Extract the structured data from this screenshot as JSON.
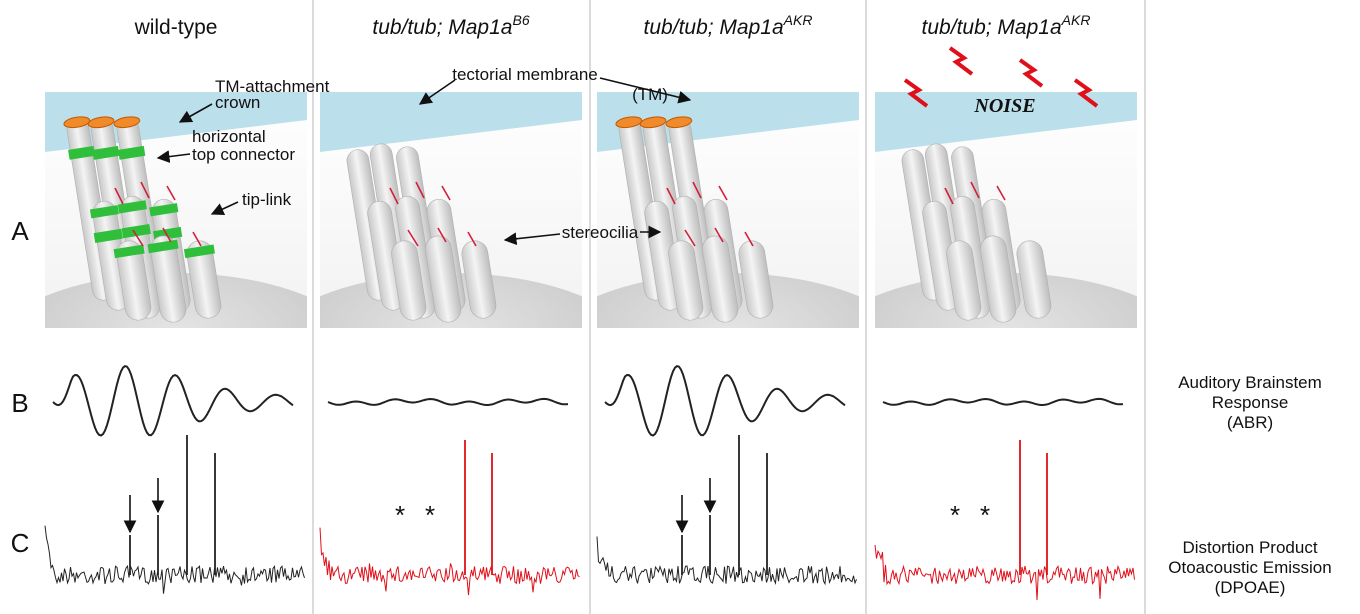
{
  "columns": [
    {
      "title": "wild-type"
    },
    {
      "title": "tub/tub; Map1a",
      "superscript": "B6"
    },
    {
      "title": "tub/tub; Map1a",
      "superscript": "AKR"
    },
    {
      "title": "tub/tub; Map1a",
      "superscript": "AKR"
    }
  ],
  "rows": [
    {
      "label": "A"
    },
    {
      "label": "B"
    },
    {
      "label": "C"
    }
  ],
  "annotations": {
    "tm_crown": [
      "TM-attachment",
      "crown"
    ],
    "top_connector": [
      "horizontal",
      "top connector"
    ],
    "tip_link": "tip-link",
    "tectorial_membrane": "tectorial membrane",
    "tm_abbrev": "(TM)",
    "stereocilia": "stereocilia",
    "noise": "NOISE",
    "asterisk": "*"
  },
  "side_labels": {
    "abr": [
      "Auditory Brainstem",
      "Response",
      "(ABR)"
    ],
    "dpoae": [
      "Distortion Product",
      "Otoacoustic Emission",
      "(DPOAE)"
    ]
  }
}
